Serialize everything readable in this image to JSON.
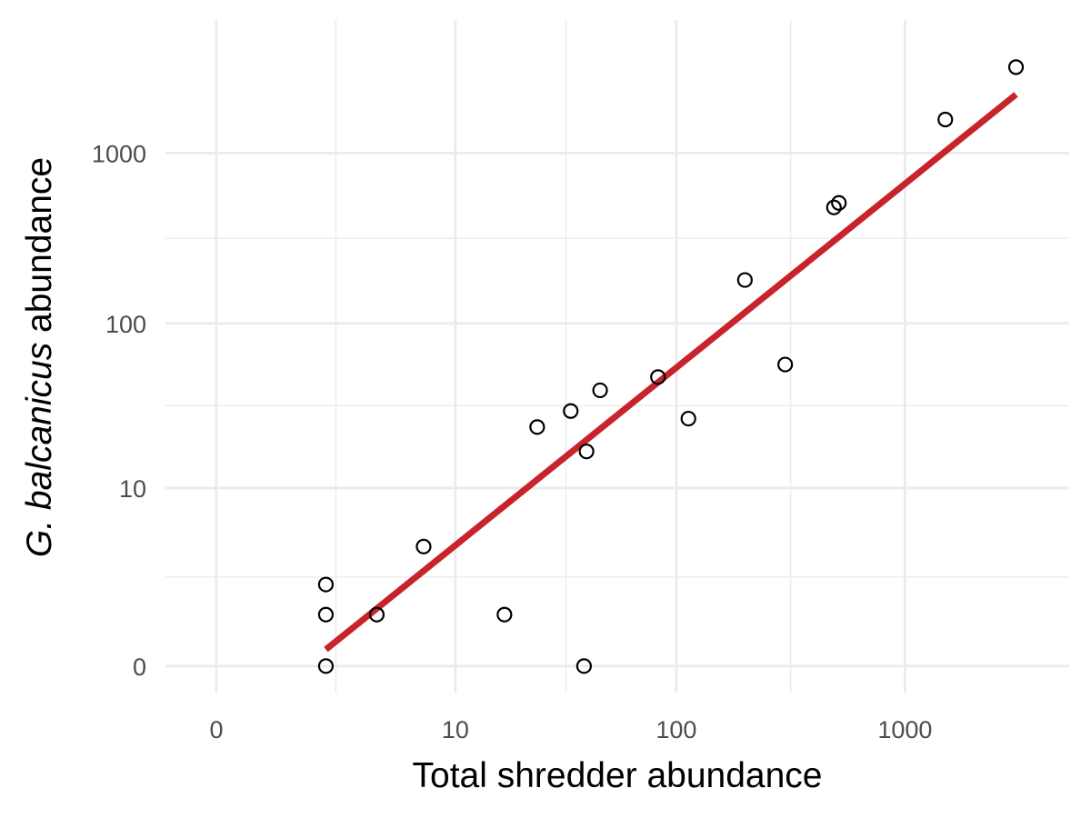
{
  "chart_data": {
    "type": "scatter",
    "title": "",
    "xlabel": "Total shredder abundance",
    "ylabel": {
      "italic": "G. balcanicus",
      "rest": " abundance"
    },
    "x_scale": "log1p",
    "y_scale": "log1p",
    "x_ticks": [
      0,
      10,
      100,
      1000
    ],
    "x_tick_labels": [
      "0",
      "10",
      "100",
      "1000"
    ],
    "y_ticks": [
      0,
      10,
      100,
      1000
    ],
    "y_tick_labels": [
      "0",
      "10",
      "100",
      "1000"
    ],
    "xlim": [
      -0.4,
      5200
    ],
    "ylim": [
      -0.3,
      6000
    ],
    "grid": true,
    "legend": "none",
    "points": [
      {
        "x": 2,
        "y": 0
      },
      {
        "x": 2,
        "y": 1
      },
      {
        "x": 2,
        "y": 2
      },
      {
        "x": 4,
        "y": 1
      },
      {
        "x": 7,
        "y": 4
      },
      {
        "x": 17,
        "y": 1
      },
      {
        "x": 24,
        "y": 24
      },
      {
        "x": 34,
        "y": 30
      },
      {
        "x": 39,
        "y": 0
      },
      {
        "x": 40,
        "y": 17
      },
      {
        "x": 46,
        "y": 40
      },
      {
        "x": 83,
        "y": 48
      },
      {
        "x": 113,
        "y": 27
      },
      {
        "x": 200,
        "y": 180
      },
      {
        "x": 300,
        "y": 57
      },
      {
        "x": 490,
        "y": 480
      },
      {
        "x": 515,
        "y": 510
      },
      {
        "x": 1500,
        "y": 1570
      },
      {
        "x": 3050,
        "y": 3180
      }
    ],
    "fit_line": {
      "color": "#c8232b",
      "points": [
        {
          "x": 2,
          "y": 0.25
        },
        {
          "x": 3050,
          "y": 2200
        }
      ]
    },
    "colors": {
      "point_stroke": "#000000",
      "grid": "#ebebeb",
      "fit": "#c8232b"
    }
  }
}
